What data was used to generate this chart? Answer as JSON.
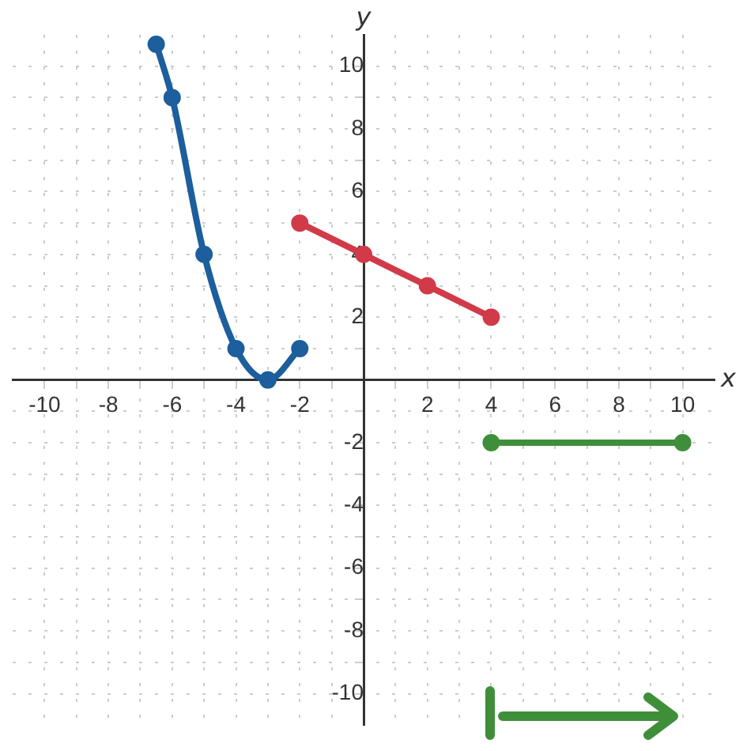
{
  "chart_data": {
    "type": "line",
    "xlabel": "x",
    "ylabel": "y",
    "xlim": [
      -11,
      11
    ],
    "ylim": [
      -11,
      11
    ],
    "xticks": [
      -10,
      {
        "value": -9,
        "label": null
      },
      -8,
      {
        "value": -7,
        "label": null
      },
      -6,
      {
        "value": -5,
        "label": null
      },
      -4,
      {
        "value": -3,
        "label": null
      },
      -2,
      {
        "value": -1,
        "label": null
      },
      {
        "value": 0,
        "label": null
      },
      {
        "value": 1,
        "label": null
      },
      2,
      {
        "value": 3,
        "label": null
      },
      4,
      {
        "value": 5,
        "label": null
      },
      6,
      {
        "value": 7,
        "label": null
      },
      8,
      {
        "value": 9,
        "label": null
      },
      10
    ],
    "yticks": [
      -10,
      {
        "value": -9,
        "label": null
      },
      -8,
      {
        "value": -7,
        "label": null
      },
      -6,
      {
        "value": -5,
        "label": null
      },
      -4,
      {
        "value": -3,
        "label": null
      },
      -2,
      {
        "value": -1,
        "label": null
      },
      {
        "value": 0,
        "label": null
      },
      {
        "value": 1,
        "label": null
      },
      2,
      {
        "value": 3,
        "label": null
      },
      4,
      {
        "value": 5,
        "label": null
      },
      6,
      {
        "value": 7,
        "label": null
      },
      8,
      {
        "value": 9,
        "label": null
      },
      10
    ],
    "grid": true,
    "legend": false,
    "marker": "circle",
    "series": [
      {
        "color": "#1d5e9c",
        "x": [
          -6.5,
          -6,
          -5,
          -4,
          -3,
          -2
        ],
        "values": [
          10.7,
          9,
          4,
          1,
          0,
          1
        ]
      },
      {
        "color": "#d13a48",
        "x": [
          -2,
          0,
          2,
          4
        ],
        "values": [
          5,
          4,
          3,
          2
        ]
      },
      {
        "color": "#3f8f3a",
        "x": [
          4,
          10
        ],
        "values": [
          -2,
          -2
        ]
      }
    ]
  }
}
